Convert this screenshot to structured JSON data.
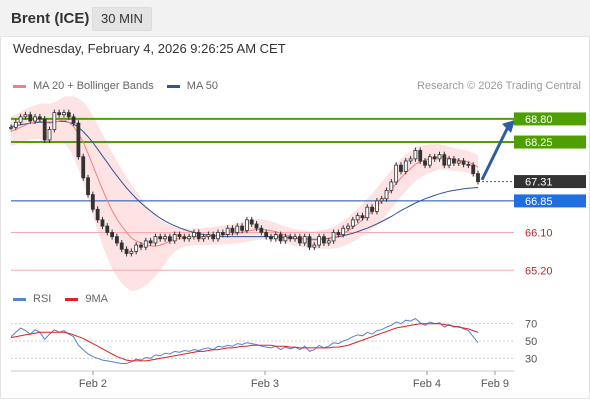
{
  "header": {
    "instrument": "Brent (ICE)",
    "timeframe": "30 MIN"
  },
  "datetime": "Wednesday, February 4, 2026 9:26:25 AM CET",
  "credit": "Research © 2026 Trading Central",
  "colors": {
    "ma20": "#f08080",
    "ma50": "#2f5596",
    "bands_fill": "#fde0e0",
    "resistance": "#4ea000",
    "support": "#f7a8b0",
    "pivot": "#1a4fa8",
    "last_price": "#333333",
    "rsi": "#5a7fd6",
    "rsi_ma": "#e02020",
    "arrow": "#2f5e9e",
    "candle": "#333333"
  },
  "chart_data": [
    {
      "type": "candlestick",
      "legend": [
        {
          "label": "MA 20 + Bollinger Bands"
        },
        {
          "label": "MA 50"
        }
      ],
      "x_tick_labels": [
        "Feb 2",
        "Feb 3",
        "Feb 4",
        "Feb 9"
      ],
      "ylim": [
        64.85,
        69.25
      ],
      "levels": [
        {
          "label": "68.80",
          "value": 68.8,
          "kind": "resistance"
        },
        {
          "label": "68.25",
          "value": 68.25,
          "kind": "resistance"
        },
        {
          "label": "67.31",
          "value": 67.31,
          "kind": "last"
        },
        {
          "label": "66.85",
          "value": 66.85,
          "kind": "pivot"
        },
        {
          "label": "66.10",
          "value": 66.1,
          "kind": "support"
        },
        {
          "label": "65.20",
          "value": 65.2,
          "kind": "support"
        }
      ],
      "close": [
        68.6,
        68.72,
        68.85,
        68.9,
        68.75,
        68.85,
        68.8,
        68.3,
        68.55,
        68.95,
        68.9,
        68.95,
        68.85,
        68.7,
        67.9,
        67.4,
        67.0,
        66.65,
        66.4,
        66.25,
        66.1,
        66.0,
        65.85,
        65.7,
        65.6,
        65.65,
        65.8,
        65.75,
        65.9,
        65.85,
        66.0,
        65.95,
        66.0,
        65.9,
        66.05,
        66.0,
        65.95,
        66.0,
        66.1,
        65.95,
        66.0,
        66.05,
        65.95,
        66.1,
        66.05,
        66.2,
        66.1,
        66.25,
        66.15,
        66.4,
        66.3,
        66.2,
        66.1,
        66.0,
        65.95,
        66.05,
        65.9,
        66.0,
        65.95,
        66.0,
        65.85,
        66.0,
        65.75,
        65.8,
        66.0,
        65.85,
        65.9,
        66.1,
        66.05,
        66.2,
        66.25,
        66.4,
        66.5,
        66.45,
        66.7,
        66.6,
        66.85,
        66.9,
        67.1,
        67.3,
        67.7,
        67.55,
        67.8,
        67.85,
        68.05,
        67.8,
        67.7,
        67.9,
        67.85,
        67.95,
        67.7,
        67.85,
        67.75,
        67.8,
        67.72,
        67.7,
        67.5,
        67.31
      ],
      "ma20": [
        68.5,
        68.55,
        68.6,
        68.65,
        68.7,
        68.72,
        68.75,
        68.72,
        68.7,
        68.72,
        68.75,
        68.78,
        68.72,
        68.62,
        68.45,
        68.25,
        67.98,
        67.7,
        67.4,
        67.12,
        66.86,
        66.62,
        66.42,
        66.25,
        66.1,
        65.97,
        65.9,
        65.85,
        65.8,
        65.78,
        65.77,
        65.8,
        65.84,
        65.9,
        65.94,
        65.96,
        65.98,
        65.98,
        66.0,
        66.0,
        66.0,
        66.01,
        66.02,
        66.03,
        66.04,
        66.05,
        66.06,
        66.08,
        66.1,
        66.13,
        66.15,
        66.17,
        66.17,
        66.16,
        66.14,
        66.12,
        66.08,
        66.04,
        66.01,
        65.98,
        65.96,
        65.95,
        65.93,
        65.92,
        65.93,
        65.94,
        65.95,
        65.98,
        66.02,
        66.08,
        66.14,
        66.22,
        66.3,
        66.4,
        66.5,
        66.6,
        66.72,
        66.85,
        66.98,
        67.12,
        67.26,
        67.4,
        67.52,
        67.62,
        67.72,
        67.78,
        67.82,
        67.86,
        67.88,
        67.9,
        67.88,
        67.86,
        67.84,
        67.82,
        67.8,
        67.78,
        67.72,
        67.65
      ],
      "ma50": [
        68.62,
        68.64,
        68.66,
        68.68,
        68.7,
        68.71,
        68.72,
        68.72,
        68.72,
        68.73,
        68.74,
        68.74,
        68.72,
        68.68,
        68.6,
        68.5,
        68.38,
        68.24,
        68.08,
        67.92,
        67.76,
        67.6,
        67.45,
        67.3,
        67.16,
        67.03,
        66.91,
        66.8,
        66.7,
        66.61,
        66.52,
        66.44,
        66.37,
        66.31,
        66.26,
        66.21,
        66.17,
        66.13,
        66.1,
        66.07,
        66.05,
        66.03,
        66.02,
        66.01,
        66.0,
        66.0,
        66.0,
        66.0,
        66.0,
        66.0,
        66.0,
        66.0,
        66.0,
        66.0,
        66.0,
        66.0,
        65.99,
        65.98,
        65.97,
        65.96,
        65.95,
        65.95,
        65.94,
        65.94,
        65.94,
        65.95,
        65.96,
        65.98,
        66.0,
        66.02,
        66.05,
        66.08,
        66.12,
        66.16,
        66.2,
        66.25,
        66.3,
        66.36,
        66.42,
        66.48,
        66.55,
        66.62,
        66.68,
        66.74,
        66.8,
        66.85,
        66.9,
        66.94,
        66.98,
        67.02,
        67.05,
        67.08,
        67.1,
        67.12,
        67.14,
        67.15,
        67.16,
        67.17
      ],
      "band_half_width": [
        0.35,
        0.36,
        0.37,
        0.38,
        0.39,
        0.4,
        0.42,
        0.44,
        0.46,
        0.48,
        0.5,
        0.55,
        0.62,
        0.72,
        0.84,
        0.96,
        1.08,
        1.18,
        1.26,
        1.32,
        1.36,
        1.38,
        1.38,
        1.36,
        1.32,
        1.26,
        1.18,
        1.08,
        0.96,
        0.84,
        0.72,
        0.6,
        0.48,
        0.38,
        0.3,
        0.25,
        0.22,
        0.2,
        0.2,
        0.2,
        0.2,
        0.21,
        0.21,
        0.22,
        0.22,
        0.23,
        0.23,
        0.24,
        0.24,
        0.25,
        0.25,
        0.25,
        0.24,
        0.23,
        0.22,
        0.21,
        0.2,
        0.2,
        0.2,
        0.2,
        0.2,
        0.2,
        0.2,
        0.21,
        0.22,
        0.23,
        0.24,
        0.26,
        0.28,
        0.3,
        0.32,
        0.34,
        0.36,
        0.38,
        0.4,
        0.42,
        0.44,
        0.45,
        0.46,
        0.46,
        0.46,
        0.45,
        0.44,
        0.42,
        0.4,
        0.38,
        0.36,
        0.34,
        0.32,
        0.3,
        0.29,
        0.28,
        0.27,
        0.26,
        0.26,
        0.26,
        0.27,
        0.3
      ],
      "forecast": {
        "from": 67.35,
        "to": 68.8
      }
    },
    {
      "type": "line",
      "legend": [
        {
          "label": "RSI"
        },
        {
          "label": "9MA"
        }
      ],
      "ylim": [
        20,
        80
      ],
      "y_ticks": [
        70,
        50,
        30
      ],
      "rsi": [
        55,
        60,
        65,
        62,
        58,
        63,
        60,
        52,
        58,
        63,
        60,
        62,
        58,
        55,
        45,
        40,
        35,
        32,
        30,
        28,
        27,
        26,
        25,
        24,
        24,
        26,
        29,
        28,
        31,
        30,
        34,
        33,
        36,
        35,
        38,
        37,
        39,
        38,
        40,
        39,
        41,
        42,
        40,
        44,
        43,
        45,
        44,
        47,
        46,
        48,
        47,
        46,
        44,
        43,
        42,
        44,
        40,
        43,
        41,
        43,
        40,
        44,
        38,
        40,
        45,
        42,
        44,
        48,
        47,
        50,
        52,
        55,
        57,
        56,
        60,
        58,
        62,
        63,
        66,
        68,
        72,
        70,
        74,
        73,
        76,
        71,
        68,
        72,
        70,
        71,
        66,
        69,
        66,
        67,
        64,
        62,
        55,
        48
      ],
      "ma9": [
        54,
        55,
        56,
        57,
        58,
        59,
        60,
        60,
        60,
        60,
        60,
        60,
        59,
        57,
        55,
        53,
        50,
        47,
        44,
        41,
        38,
        35,
        32,
        30,
        28,
        27,
        27,
        27,
        27,
        28,
        29,
        30,
        31,
        32,
        33,
        34,
        35,
        36,
        37,
        38,
        38,
        39,
        40,
        40,
        41,
        42,
        42,
        43,
        44,
        44,
        45,
        45,
        45,
        45,
        45,
        44,
        44,
        44,
        43,
        43,
        42,
        42,
        42,
        42,
        42,
        42,
        42,
        43,
        43,
        44,
        45,
        47,
        49,
        51,
        53,
        55,
        57,
        59,
        61,
        63,
        65,
        66,
        67,
        68,
        69,
        70,
        70,
        70,
        70,
        70,
        69,
        68,
        67,
        66,
        65,
        64,
        62,
        60
      ]
    }
  ]
}
